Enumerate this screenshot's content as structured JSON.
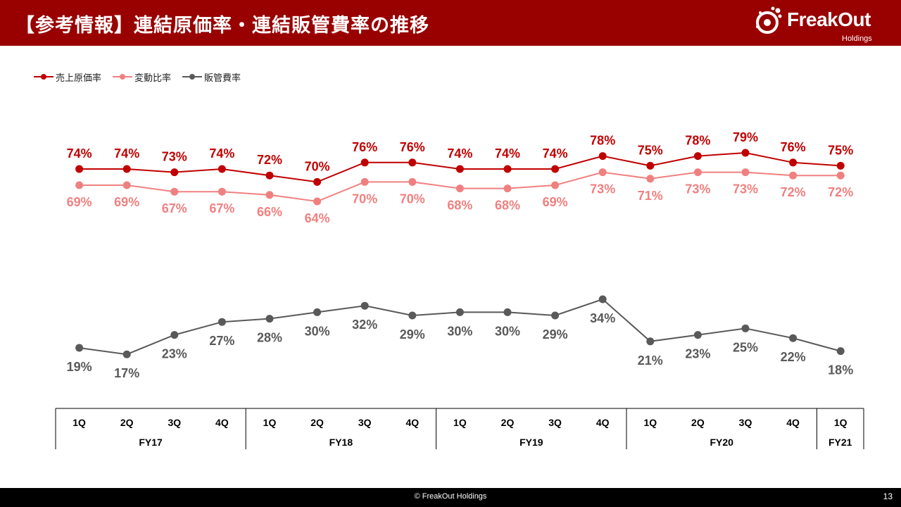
{
  "header": {
    "title": "【参考情報】連結原価率・連結販管費率の推移",
    "logo_text": "FreakOut",
    "logo_sub": "Holdings"
  },
  "colors": {
    "header_bg": "#990000",
    "series_cost": "#c00000",
    "series_variable": "#f08080",
    "series_sga": "#595959",
    "footer_bg": "#000000"
  },
  "chart_data": {
    "type": "line",
    "categories": [
      "1Q",
      "2Q",
      "3Q",
      "4Q",
      "1Q",
      "2Q",
      "3Q",
      "4Q",
      "1Q",
      "2Q",
      "3Q",
      "4Q",
      "1Q",
      "2Q",
      "3Q",
      "4Q",
      "1Q"
    ],
    "groups": [
      {
        "label": "FY17",
        "span": 4
      },
      {
        "label": "FY18",
        "span": 4
      },
      {
        "label": "FY19",
        "span": 4
      },
      {
        "label": "FY20",
        "span": 4
      },
      {
        "label": "FY21",
        "span": 1
      }
    ],
    "series": [
      {
        "name": "売上原価率",
        "color": "#c00000",
        "labels_position": "above",
        "values": [
          74,
          74,
          73,
          74,
          72,
          70,
          76,
          76,
          74,
          74,
          74,
          78,
          75,
          78,
          79,
          76,
          75
        ]
      },
      {
        "name": "変動比率",
        "color": "#f08080",
        "labels_position": "below",
        "values": [
          69,
          69,
          67,
          67,
          66,
          64,
          70,
          70,
          68,
          68,
          69,
          73,
          71,
          73,
          73,
          72,
          72
        ]
      },
      {
        "name": "販管費率",
        "color": "#595959",
        "labels_position": "below",
        "values": [
          19,
          17,
          23,
          27,
          28,
          30,
          32,
          29,
          30,
          30,
          29,
          34,
          21,
          23,
          25,
          22,
          18
        ]
      }
    ],
    "value_suffix": "%",
    "legend_position": "top-left",
    "grid": false
  },
  "footer": {
    "copyright": "© FreakOut Holdings",
    "page": "13"
  }
}
